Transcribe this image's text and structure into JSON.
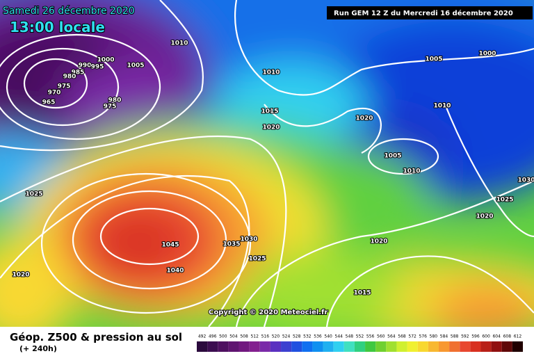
{
  "header": {
    "date": "Samedi 26 décembre 2020",
    "time": "13:00 locale",
    "run": "Run GEM 12 Z du Mercredi 16 décembre 2020"
  },
  "isobar_labels": [
    1010,
    1000,
    990,
    995,
    985,
    980,
    975,
    970,
    965,
    980,
    975,
    1005,
    1010,
    1015,
    1020,
    1020,
    1005,
    1000,
    1010,
    1005,
    1010,
    1025,
    1025,
    1030,
    1020,
    1045,
    1040,
    1035,
    1030,
    1025,
    1020,
    1015,
    1020
  ],
  "copyright": "Copyright © 2020 Meteociel.fr",
  "legend": {
    "title": "Géop. Z500 & pression au sol",
    "lead": "(+ 240h)",
    "scale": [
      492,
      496,
      500,
      504,
      508,
      512,
      516,
      520,
      524,
      528,
      532,
      536,
      540,
      544,
      548,
      552,
      556,
      560,
      564,
      568,
      572,
      576,
      580,
      584,
      588,
      592,
      596,
      600,
      604,
      608,
      612
    ],
    "colors": [
      "#2b0a3d",
      "#3c0d50",
      "#4e1060",
      "#5f1470",
      "#71187f",
      "#83208f",
      "#7a2aa8",
      "#5a30c0",
      "#3c40d0",
      "#2050e0",
      "#1070f0",
      "#1090f0",
      "#20b0f0",
      "#30d0f0",
      "#40e0c0",
      "#30d080",
      "#40c840",
      "#70d030",
      "#a0e030",
      "#d0f030",
      "#f0f030",
      "#f8d830",
      "#f8b830",
      "#f89830",
      "#f07030",
      "#e84830",
      "#d83020",
      "#b82018",
      "#901010",
      "#600808",
      "#200000"
    ]
  }
}
